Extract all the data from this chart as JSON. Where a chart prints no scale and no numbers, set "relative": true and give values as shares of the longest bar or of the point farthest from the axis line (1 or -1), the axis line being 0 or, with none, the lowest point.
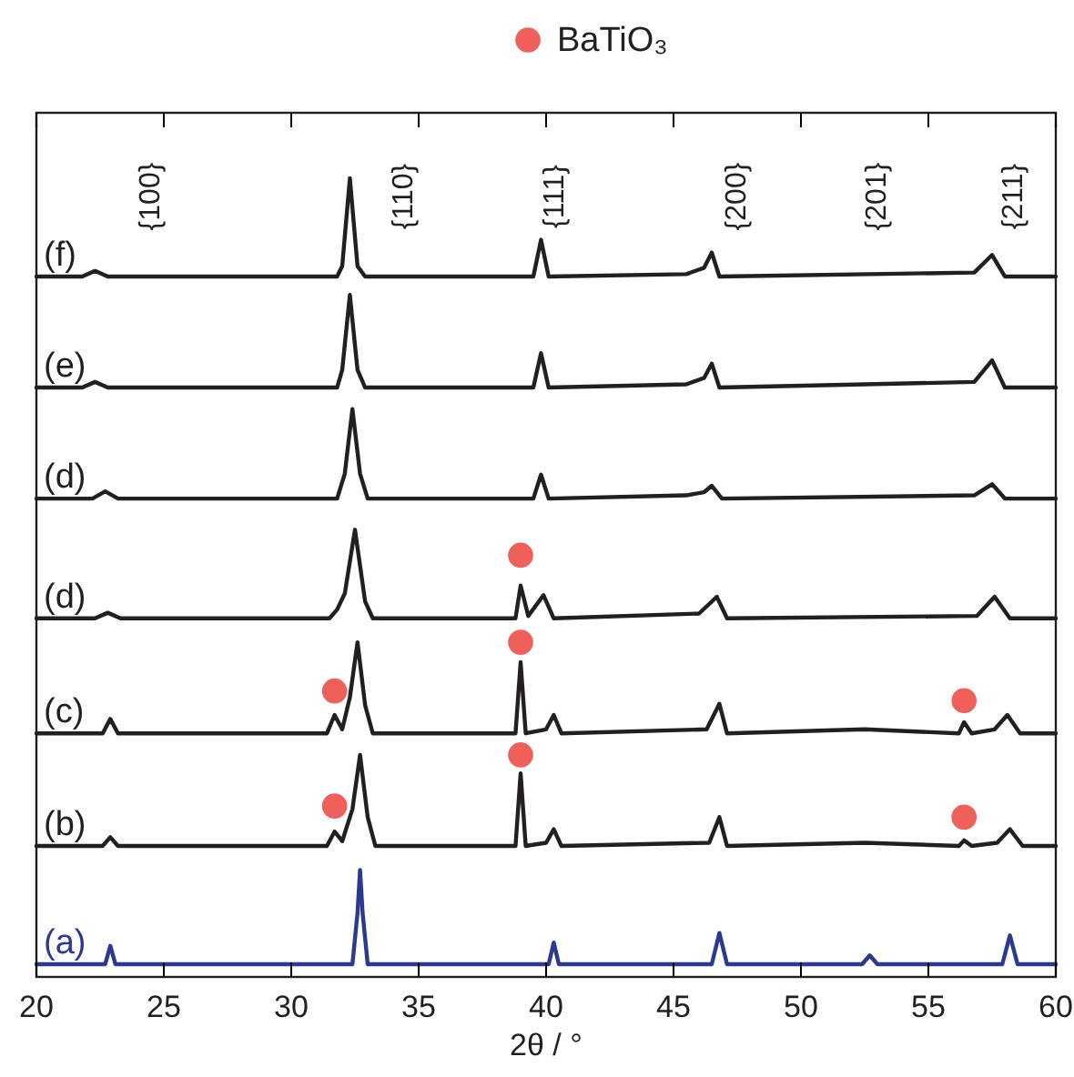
{
  "chart_data": {
    "type": "line",
    "relative": true,
    "xlabel": "2θ / °",
    "xlim": [
      20,
      60
    ],
    "xticks": [
      20,
      25,
      30,
      35,
      40,
      45,
      50,
      55,
      60
    ],
    "legend": "top right",
    "marker": "none",
    "line_style": "solid",
    "series": [
      {
        "name": "(f)",
        "color": "#231f20",
        "x": [
          20,
          21.8,
          22.3,
          22.8,
          31.8,
          32.0,
          32.3,
          32.6,
          32.9,
          39.5,
          39.8,
          40.1,
          45.5,
          46.2,
          46.5,
          46.8,
          56.8,
          57.5,
          58.0,
          60
        ],
        "values": [
          0.877,
          0.877,
          0.884,
          0.877,
          0.877,
          0.89,
          1.0,
          0.89,
          0.877,
          0.877,
          0.923,
          0.877,
          0.88,
          0.888,
          0.907,
          0.877,
          0.882,
          0.904,
          0.877,
          0.877
        ]
      },
      {
        "name": "(e)",
        "color": "#231f20",
        "x": [
          20,
          21.8,
          22.3,
          22.8,
          31.8,
          32.0,
          32.3,
          32.6,
          32.9,
          39.5,
          39.8,
          40.1,
          45.5,
          46.2,
          46.5,
          46.8,
          56.8,
          57.5,
          58.0,
          60
        ],
        "values": [
          0.738,
          0.738,
          0.745,
          0.738,
          0.738,
          0.76,
          0.854,
          0.76,
          0.738,
          0.738,
          0.781,
          0.738,
          0.742,
          0.75,
          0.768,
          0.738,
          0.745,
          0.772,
          0.738,
          0.738
        ]
      },
      {
        "name": "(d)",
        "color": "#231f20",
        "x": [
          20,
          22.2,
          22.7,
          23.2,
          31.8,
          32.1,
          32.4,
          32.7,
          33.0,
          39.5,
          39.8,
          40.1,
          45.5,
          46.2,
          46.5,
          46.9,
          56.8,
          57.5,
          58.0,
          60
        ],
        "values": [
          0.599,
          0.599,
          0.608,
          0.599,
          0.599,
          0.63,
          0.711,
          0.63,
          0.599,
          0.599,
          0.629,
          0.599,
          0.603,
          0.607,
          0.615,
          0.599,
          0.603,
          0.617,
          0.599,
          0.599
        ]
      },
      {
        "name": "(d)",
        "color": "#231f20",
        "x": [
          20,
          22.3,
          22.8,
          23.3,
          31.5,
          31.8,
          32.1,
          32.5,
          32.9,
          33.2,
          38.8,
          39.0,
          39.3,
          39.9,
          40.3,
          46.0,
          46.7,
          47.1,
          56.9,
          57.6,
          58.2,
          60
        ],
        "values": [
          0.449,
          0.449,
          0.456,
          0.449,
          0.449,
          0.46,
          0.48,
          0.56,
          0.47,
          0.449,
          0.449,
          0.49,
          0.452,
          0.478,
          0.449,
          0.455,
          0.476,
          0.449,
          0.452,
          0.476,
          0.449,
          0.449
        ]
      },
      {
        "name": "(c)",
        "color": "#231f20",
        "x": [
          20,
          22.6,
          22.9,
          23.2,
          31.4,
          31.7,
          32.0,
          32.3,
          32.6,
          32.9,
          33.2,
          38.8,
          39.0,
          39.2,
          40.0,
          40.3,
          40.6,
          46.3,
          46.8,
          47.1,
          52.5,
          56.2,
          56.4,
          56.7,
          57.6,
          58.1,
          58.6,
          60
        ],
        "values": [
          0.305,
          0.305,
          0.323,
          0.305,
          0.305,
          0.328,
          0.31,
          0.35,
          0.419,
          0.34,
          0.305,
          0.305,
          0.394,
          0.305,
          0.31,
          0.328,
          0.305,
          0.31,
          0.342,
          0.305,
          0.31,
          0.305,
          0.319,
          0.305,
          0.31,
          0.328,
          0.305,
          0.305
        ]
      },
      {
        "name": "(b)",
        "color": "#231f20",
        "x": [
          20,
          22.6,
          22.9,
          23.2,
          31.4,
          31.7,
          32.0,
          32.4,
          32.7,
          33.0,
          33.3,
          38.8,
          39.0,
          39.2,
          40.0,
          40.3,
          40.6,
          46.4,
          46.8,
          47.1,
          52.5,
          56.2,
          56.4,
          56.7,
          57.7,
          58.2,
          58.7,
          60
        ],
        "values": [
          0.164,
          0.164,
          0.175,
          0.164,
          0.164,
          0.182,
          0.17,
          0.21,
          0.278,
          0.2,
          0.164,
          0.164,
          0.255,
          0.164,
          0.168,
          0.185,
          0.164,
          0.168,
          0.2,
          0.164,
          0.168,
          0.164,
          0.171,
          0.164,
          0.168,
          0.185,
          0.164,
          0.164
        ]
      },
      {
        "name": "(a)",
        "color": "#2b3990",
        "x": [
          20,
          22.7,
          22.9,
          23.1,
          32.4,
          32.6,
          32.7,
          32.8,
          33.0,
          40.1,
          40.3,
          40.5,
          46.5,
          46.8,
          47.1,
          52.4,
          52.7,
          53.0,
          57.9,
          58.2,
          58.5,
          60
        ],
        "values": [
          0.016,
          0.016,
          0.039,
          0.016,
          0.016,
          0.08,
          0.134,
          0.08,
          0.016,
          0.016,
          0.043,
          0.016,
          0.016,
          0.055,
          0.016,
          0.016,
          0.027,
          0.016,
          0.016,
          0.052,
          0.016,
          0.016
        ]
      },
      {
        "type": "scatter",
        "name": "BaTiO₃",
        "color": "#f0605a",
        "marker": "circle",
        "x": [
          39.0,
          31.7,
          39.0,
          56.4,
          31.7,
          39.0,
          56.4
        ],
        "values": [
          0.528,
          0.358,
          0.419,
          0.346,
          0.214,
          0.278,
          0.2
        ]
      }
    ],
    "annotations": [
      "{100}",
      "{110}",
      "{111}",
      "{200}",
      "{201}",
      "{211}"
    ]
  }
}
